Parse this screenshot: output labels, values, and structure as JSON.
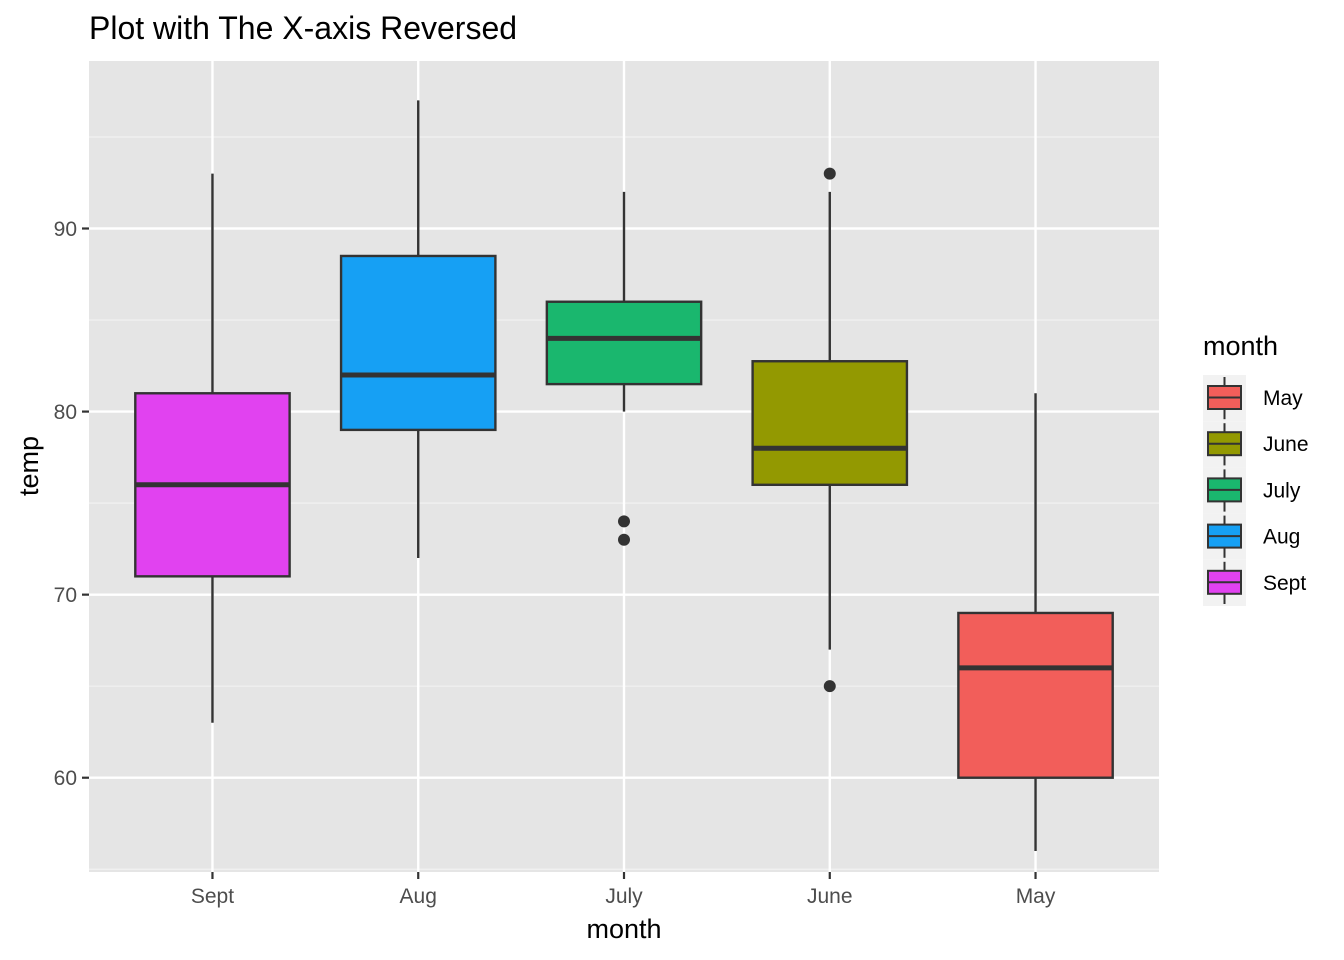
{
  "chart_data": {
    "type": "boxplot",
    "title": "Plot with The X-axis Reversed",
    "xlabel": "month",
    "ylabel": "temp",
    "ylim": [
      54.85,
      99.15
    ],
    "yticks": [
      60,
      70,
      80,
      90
    ],
    "grid": true,
    "categories": [
      "Sept",
      "Aug",
      "July",
      "June",
      "May"
    ],
    "boxes": [
      {
        "category": "Sept",
        "min": 63,
        "q1": 71,
        "median": 76,
        "q3": 81,
        "max": 93,
        "outliers": [],
        "color": "#E142F0"
      },
      {
        "category": "Aug",
        "min": 72,
        "q1": 79,
        "median": 82,
        "q3": 88.5,
        "max": 97,
        "outliers": [],
        "color": "#16A0F4"
      },
      {
        "category": "July",
        "min": 80,
        "q1": 81.5,
        "median": 84,
        "q3": 86,
        "max": 92,
        "outliers": [
          73,
          74
        ],
        "color": "#1AB76E"
      },
      {
        "category": "June",
        "min": 67,
        "q1": 76,
        "median": 78,
        "q3": 82.75,
        "max": 92,
        "outliers": [
          65,
          93
        ],
        "color": "#939901"
      },
      {
        "category": "May",
        "min": 56,
        "q1": 60,
        "median": 66,
        "q3": 69,
        "max": 81,
        "outliers": [],
        "color": "#F25E5A"
      }
    ],
    "legend": {
      "title": "month",
      "position": "right",
      "entries": [
        {
          "label": "May",
          "color": "#F25E5A"
        },
        {
          "label": "June",
          "color": "#939901"
        },
        {
          "label": "July",
          "color": "#1AB76E"
        },
        {
          "label": "Aug",
          "color": "#16A0F4"
        },
        {
          "label": "Sept",
          "color": "#E142F0"
        }
      ]
    }
  }
}
